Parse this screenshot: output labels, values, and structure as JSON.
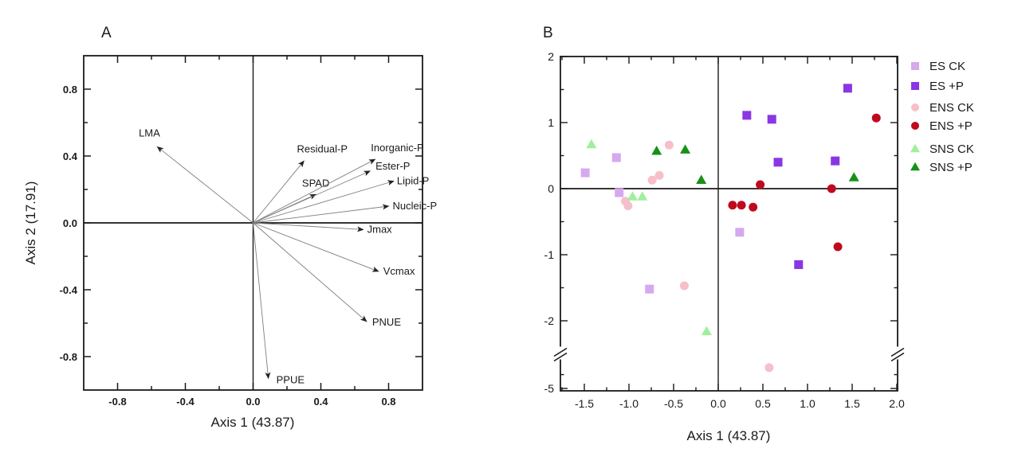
{
  "figure": {
    "background": "#ffffff",
    "axis_color": "#1a1a1a",
    "vector_line_color": "#7f7f7f"
  },
  "chart_data": [
    {
      "type": "scatter",
      "subtype": "pca-loading-biplot",
      "panel_label": "A",
      "xlabel": "Axis 1 (43.87)",
      "ylabel": "Axis 2 (17.91)",
      "xlim": [
        -1,
        1
      ],
      "ylim": [
        -1,
        1
      ],
      "grid": false,
      "x_major_ticks": [
        -0.8,
        -0.4,
        0.0,
        0.4,
        0.8
      ],
      "x_tick_labels": [
        "-0.8",
        "-0.4",
        "0.0",
        "0.4",
        "0.8"
      ],
      "x_minor_step": 0.2,
      "y_major_ticks": [
        0.8,
        0.4,
        0.0,
        -0.4,
        -0.8
      ],
      "y_tick_labels": [
        "0.8",
        "0.4",
        "0.0",
        "-0.4",
        "-0.8"
      ],
      "y_minor_step": 0.2,
      "vectors": [
        {
          "name": "LMA",
          "x": -0.565,
          "y": 0.455,
          "anchor": "middle",
          "ldx": -10,
          "ldy": -13
        },
        {
          "name": "Residual-P",
          "x": 0.3,
          "y": 0.37,
          "anchor": "middle",
          "ldx": 23,
          "ldy": -11
        },
        {
          "name": "SPAD",
          "x": 0.37,
          "y": 0.17,
          "anchor": "middle",
          "ldx": 0,
          "ldy": -10
        },
        {
          "name": "Inorganic-P",
          "x": 0.72,
          "y": 0.38,
          "anchor": "middle",
          "ldx": 28,
          "ldy": -10
        },
        {
          "name": "Ester-P",
          "x": 0.69,
          "y": 0.31,
          "anchor": "start",
          "ldx": 7,
          "ldy": -2
        },
        {
          "name": "Lipid-P",
          "x": 0.83,
          "y": 0.25,
          "anchor": "start",
          "ldx": 4,
          "ldy": 4
        },
        {
          "name": "Nucleic-P",
          "x": 0.8,
          "y": 0.1,
          "anchor": "start",
          "ldx": 5,
          "ldy": 4
        },
        {
          "name": "Jmax",
          "x": 0.65,
          "y": -0.04,
          "anchor": "start",
          "ldx": 5,
          "ldy": 4
        },
        {
          "name": "Vcmax",
          "x": 0.74,
          "y": -0.29,
          "anchor": "start",
          "ldx": 6,
          "ldy": 4
        },
        {
          "name": "PNUE",
          "x": 0.67,
          "y": -0.59,
          "anchor": "start",
          "ldx": 7,
          "ldy": 5
        },
        {
          "name": "PPUE",
          "x": 0.09,
          "y": -0.93,
          "anchor": "start",
          "ldx": 10,
          "ldy": 6
        }
      ]
    },
    {
      "type": "scatter",
      "panel_label": "B",
      "xlabel": "Axis 1 (43.87)",
      "ylabel": "",
      "xlim": [
        -1.768,
        2.009
      ],
      "ylim": [
        -5,
        2
      ],
      "grid": false,
      "x_major_ticks": [
        -1.5,
        -1.0,
        -0.5,
        0.0,
        0.5,
        1.0,
        1.5,
        2.0
      ],
      "x_tick_labels": [
        "-1.5",
        "-1.0",
        "-0.5",
        "0.0",
        "0.5",
        "1.0",
        "1.5",
        "2.0"
      ],
      "x_minor_step": 0.25,
      "y_major_ticks": [
        2,
        1,
        0,
        -1,
        -2
      ],
      "y_tick_labels": [
        "2",
        "1",
        "0",
        "-1",
        "-2"
      ],
      "y_minor_ticks": [
        1.5,
        0.5,
        -0.5,
        -1.5,
        -4
      ],
      "y_axis_break": {
        "break_starts_at": -2.5,
        "resumes_at": -5,
        "bottom_tick_label": "-5"
      },
      "legend_position": "right",
      "series": [
        {
          "name": "ES CK",
          "marker": "square",
          "color": "#d6a8ee",
          "points": [
            [
              -1.49,
              0.24
            ],
            [
              -1.14,
              0.47
            ],
            [
              -1.11,
              -0.06
            ],
            [
              0.24,
              -0.66
            ],
            [
              -0.77,
              -1.52
            ]
          ]
        },
        {
          "name": "ES +P",
          "marker": "square",
          "color": "#8a36e4",
          "points": [
            [
              0.32,
              1.11
            ],
            [
              0.6,
              1.05
            ],
            [
              0.67,
              0.4
            ],
            [
              1.31,
              0.42
            ],
            [
              1.45,
              1.52
            ],
            [
              0.9,
              -1.15
            ]
          ]
        },
        {
          "name": "ENS CK",
          "marker": "circle",
          "color": "#f6bfc9",
          "points": [
            [
              -1.04,
              -0.19
            ],
            [
              -1.01,
              -0.26
            ],
            [
              -0.74,
              0.13
            ],
            [
              -0.66,
              0.2
            ],
            [
              -0.55,
              0.66
            ],
            [
              -0.38,
              -1.47
            ],
            [
              0.57,
              -3.5
            ]
          ]
        },
        {
          "name": "ENS +P",
          "marker": "circle",
          "color": "#c00a1e",
          "points": [
            [
              0.16,
              -0.25
            ],
            [
              0.26,
              -0.25
            ],
            [
              0.39,
              -0.28
            ],
            [
              0.47,
              0.06
            ],
            [
              1.27,
              0.0
            ],
            [
              1.77,
              1.07
            ],
            [
              1.34,
              -0.88
            ]
          ]
        },
        {
          "name": "SNS CK",
          "marker": "triangle",
          "color": "#a0ef9d",
          "points": [
            [
              -1.42,
              0.67
            ],
            [
              -0.96,
              -0.12
            ],
            [
              -0.85,
              -0.12
            ],
            [
              -0.13,
              -2.16
            ]
          ]
        },
        {
          "name": "SNS +P",
          "marker": "triangle",
          "color": "#169116",
          "points": [
            [
              -0.69,
              0.57
            ],
            [
              -0.37,
              0.59
            ],
            [
              -0.19,
              0.13
            ],
            [
              1.52,
              0.17
            ]
          ]
        }
      ]
    }
  ]
}
